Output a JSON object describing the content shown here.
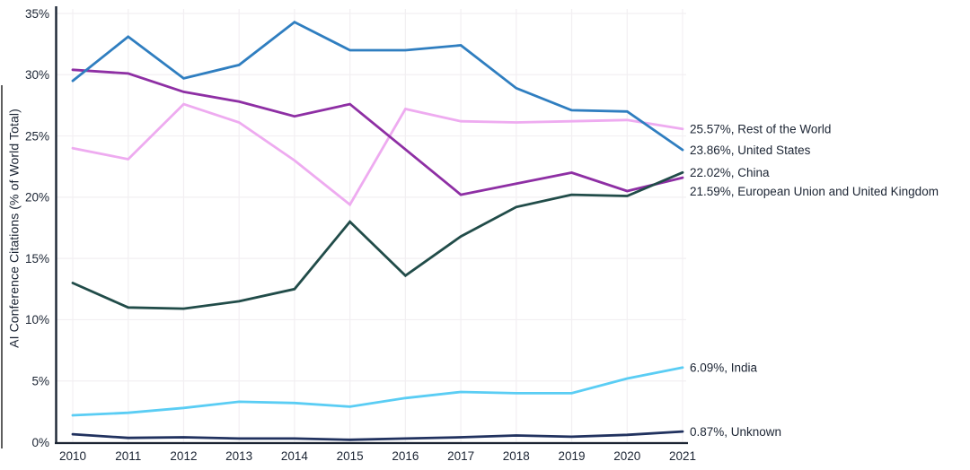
{
  "page": {
    "background": "#ffffff"
  },
  "chart_data": {
    "type": "line",
    "title": "",
    "ylabel": "AI Conference Citations (% of World Total)",
    "xlabel": "",
    "x": [
      2010,
      2011,
      2012,
      2013,
      2014,
      2015,
      2016,
      2017,
      2018,
      2019,
      2020,
      2021
    ],
    "ylim": [
      0,
      35
    ],
    "yticks": [
      0,
      5,
      10,
      15,
      20,
      25,
      30,
      35
    ],
    "ytick_suffix": "%",
    "grid": true,
    "legend_position": "right-line-end-labels",
    "axis_color": "#1b2433",
    "grid_color": "#f2eff2",
    "series": [
      {
        "name": "Rest of the World",
        "color": "#eeabf0",
        "end_label": "25.57%, Rest of the World",
        "values": [
          24.0,
          23.1,
          27.6,
          26.1,
          23.0,
          19.4,
          27.2,
          26.2,
          26.1,
          26.2,
          26.3,
          25.57
        ]
      },
      {
        "name": "European Union and United Kingdom",
        "color": "#8e2fa4",
        "end_label": "21.59%, European Union and United Kingdom",
        "values": [
          30.4,
          30.1,
          28.6,
          27.8,
          26.6,
          27.6,
          23.9,
          20.2,
          21.1,
          22.0,
          20.5,
          21.59
        ]
      },
      {
        "name": "United States",
        "color": "#2f7ec0",
        "end_label": "23.86%, United States",
        "values": [
          29.5,
          33.1,
          29.7,
          30.8,
          34.3,
          32.0,
          32.0,
          32.4,
          28.9,
          27.1,
          27.0,
          23.86
        ]
      },
      {
        "name": "China",
        "color": "#214c49",
        "end_label": "22.02%, China",
        "values": [
          13.0,
          11.0,
          10.9,
          11.5,
          12.5,
          18.0,
          13.6,
          16.8,
          19.2,
          20.2,
          20.1,
          22.02
        ]
      },
      {
        "name": "India",
        "color": "#5acdf4",
        "end_label": "6.09%, India",
        "values": [
          2.2,
          2.4,
          2.8,
          3.3,
          3.2,
          2.9,
          3.6,
          4.1,
          4.0,
          4.0,
          5.2,
          6.09
        ]
      },
      {
        "name": "Unknown",
        "color": "#21325f",
        "end_label": "0.87%, Unknown",
        "values": [
          0.65,
          0.35,
          0.4,
          0.3,
          0.3,
          0.2,
          0.3,
          0.4,
          0.55,
          0.45,
          0.6,
          0.87
        ]
      }
    ]
  }
}
